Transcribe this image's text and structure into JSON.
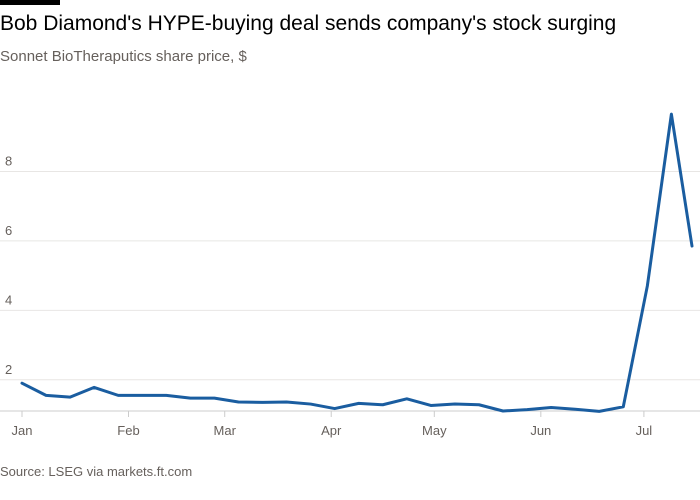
{
  "header": {
    "title": "Bob Diamond's HYPE-buying deal sends company's stock surging",
    "subtitle": "Sonnet BioTheraputics share price, $"
  },
  "footer": {
    "source": "Source: LSEG via markets.ft.com"
  },
  "colors": {
    "line": "#1a5da0",
    "grid": "#e8e6e4",
    "baseline": "#cccccc",
    "text": "#66605c"
  },
  "chart_data": {
    "type": "line",
    "title": "Bob Diamond's HYPE-buying deal sends company's stock surging",
    "subtitle": "Sonnet BioTheraputics share price, $",
    "x_type": "date",
    "x": [
      "2025-01-01",
      "2025-01-08",
      "2025-01-15",
      "2025-01-22",
      "2025-01-29",
      "2025-02-05",
      "2025-02-12",
      "2025-02-19",
      "2025-02-26",
      "2025-03-05",
      "2025-03-12",
      "2025-03-19",
      "2025-03-26",
      "2025-04-02",
      "2025-04-09",
      "2025-04-16",
      "2025-04-23",
      "2025-04-30",
      "2025-05-07",
      "2025-05-14",
      "2025-05-21",
      "2025-05-28",
      "2025-06-04",
      "2025-06-11",
      "2025-06-18",
      "2025-06-25",
      "2025-07-02",
      "2025-07-09",
      "2025-07-15"
    ],
    "series": [
      {
        "values": [
          1.9,
          1.55,
          1.5,
          1.78,
          1.55,
          1.55,
          1.55,
          1.47,
          1.47,
          1.36,
          1.35,
          1.36,
          1.3,
          1.17,
          1.32,
          1.28,
          1.45,
          1.26,
          1.3,
          1.28,
          1.1,
          1.14,
          1.2,
          1.15,
          1.09,
          1.22,
          4.7,
          9.65,
          5.85
        ]
      }
    ],
    "x_ticks": [
      {
        "label": "Jan",
        "date": "2025-01-01"
      },
      {
        "label": "Feb",
        "date": "2025-02-01"
      },
      {
        "label": "Mar",
        "date": "2025-03-01"
      },
      {
        "label": "Apr",
        "date": "2025-04-01"
      },
      {
        "label": "May",
        "date": "2025-05-01"
      },
      {
        "label": "Jun",
        "date": "2025-06-01"
      },
      {
        "label": "Jul",
        "date": "2025-07-01"
      }
    ],
    "y_ticks": [
      2,
      4,
      6,
      8
    ],
    "ylim": [
      1.1,
      10
    ],
    "xlim": [
      "2025-01-01",
      "2025-07-15"
    ],
    "xlabel": "",
    "ylabel": "",
    "grid": true,
    "legend": "none"
  }
}
